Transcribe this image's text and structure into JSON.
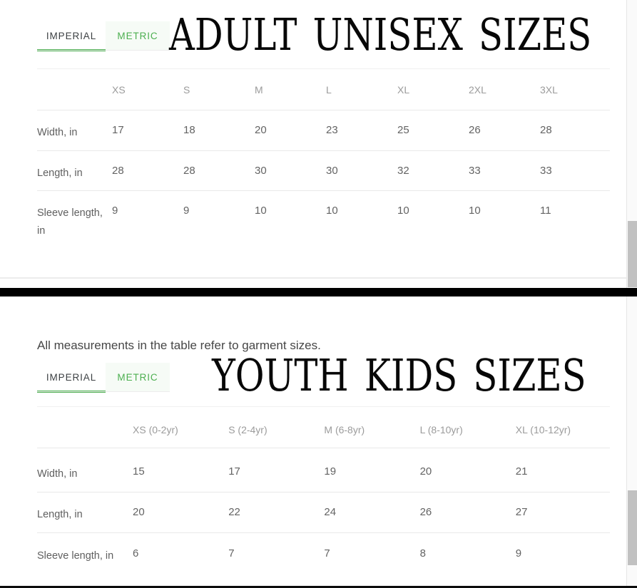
{
  "colors": {
    "accent_green": "#4caf50",
    "active_tab_text": "#3c4043",
    "divider_black": "#000000"
  },
  "adult": {
    "title": "ADULT UNISEX SIZES",
    "tabs": [
      {
        "label": "IMPERIAL",
        "active": true
      },
      {
        "label": "METRIC",
        "active": false
      }
    ],
    "table": {
      "columns": [
        "XS",
        "S",
        "M",
        "L",
        "XL",
        "2XL",
        "3XL"
      ],
      "rows": [
        {
          "label": "Width, in",
          "values": [
            "17",
            "18",
            "20",
            "23",
            "25",
            "26",
            "28"
          ]
        },
        {
          "label": "Length, in",
          "values": [
            "28",
            "28",
            "30",
            "30",
            "32",
            "33",
            "33"
          ]
        },
        {
          "label": "Sleeve length, in",
          "values": [
            "9",
            "9",
            "10",
            "10",
            "10",
            "10",
            "11"
          ]
        }
      ]
    }
  },
  "note": "All measurements in the table refer to garment sizes.",
  "youth": {
    "title": "YOUTH KIDS SIZES",
    "tabs": [
      {
        "label": "IMPERIAL",
        "active": true
      },
      {
        "label": "METRIC",
        "active": false
      }
    ],
    "table": {
      "columns": [
        "XS (0-2yr)",
        "S (2-4yr)",
        "M (6-8yr)",
        "L (8-10yr)",
        "XL (10-12yr)"
      ],
      "rows": [
        {
          "label": "Width, in",
          "values": [
            "15",
            "17",
            "19",
            "20",
            "21"
          ]
        },
        {
          "label": "Length, in",
          "values": [
            "20",
            "22",
            "24",
            "26",
            "27"
          ]
        },
        {
          "label": "Sleeve length, in",
          "values": [
            "6",
            "7",
            "7",
            "8",
            "9"
          ]
        }
      ]
    }
  }
}
